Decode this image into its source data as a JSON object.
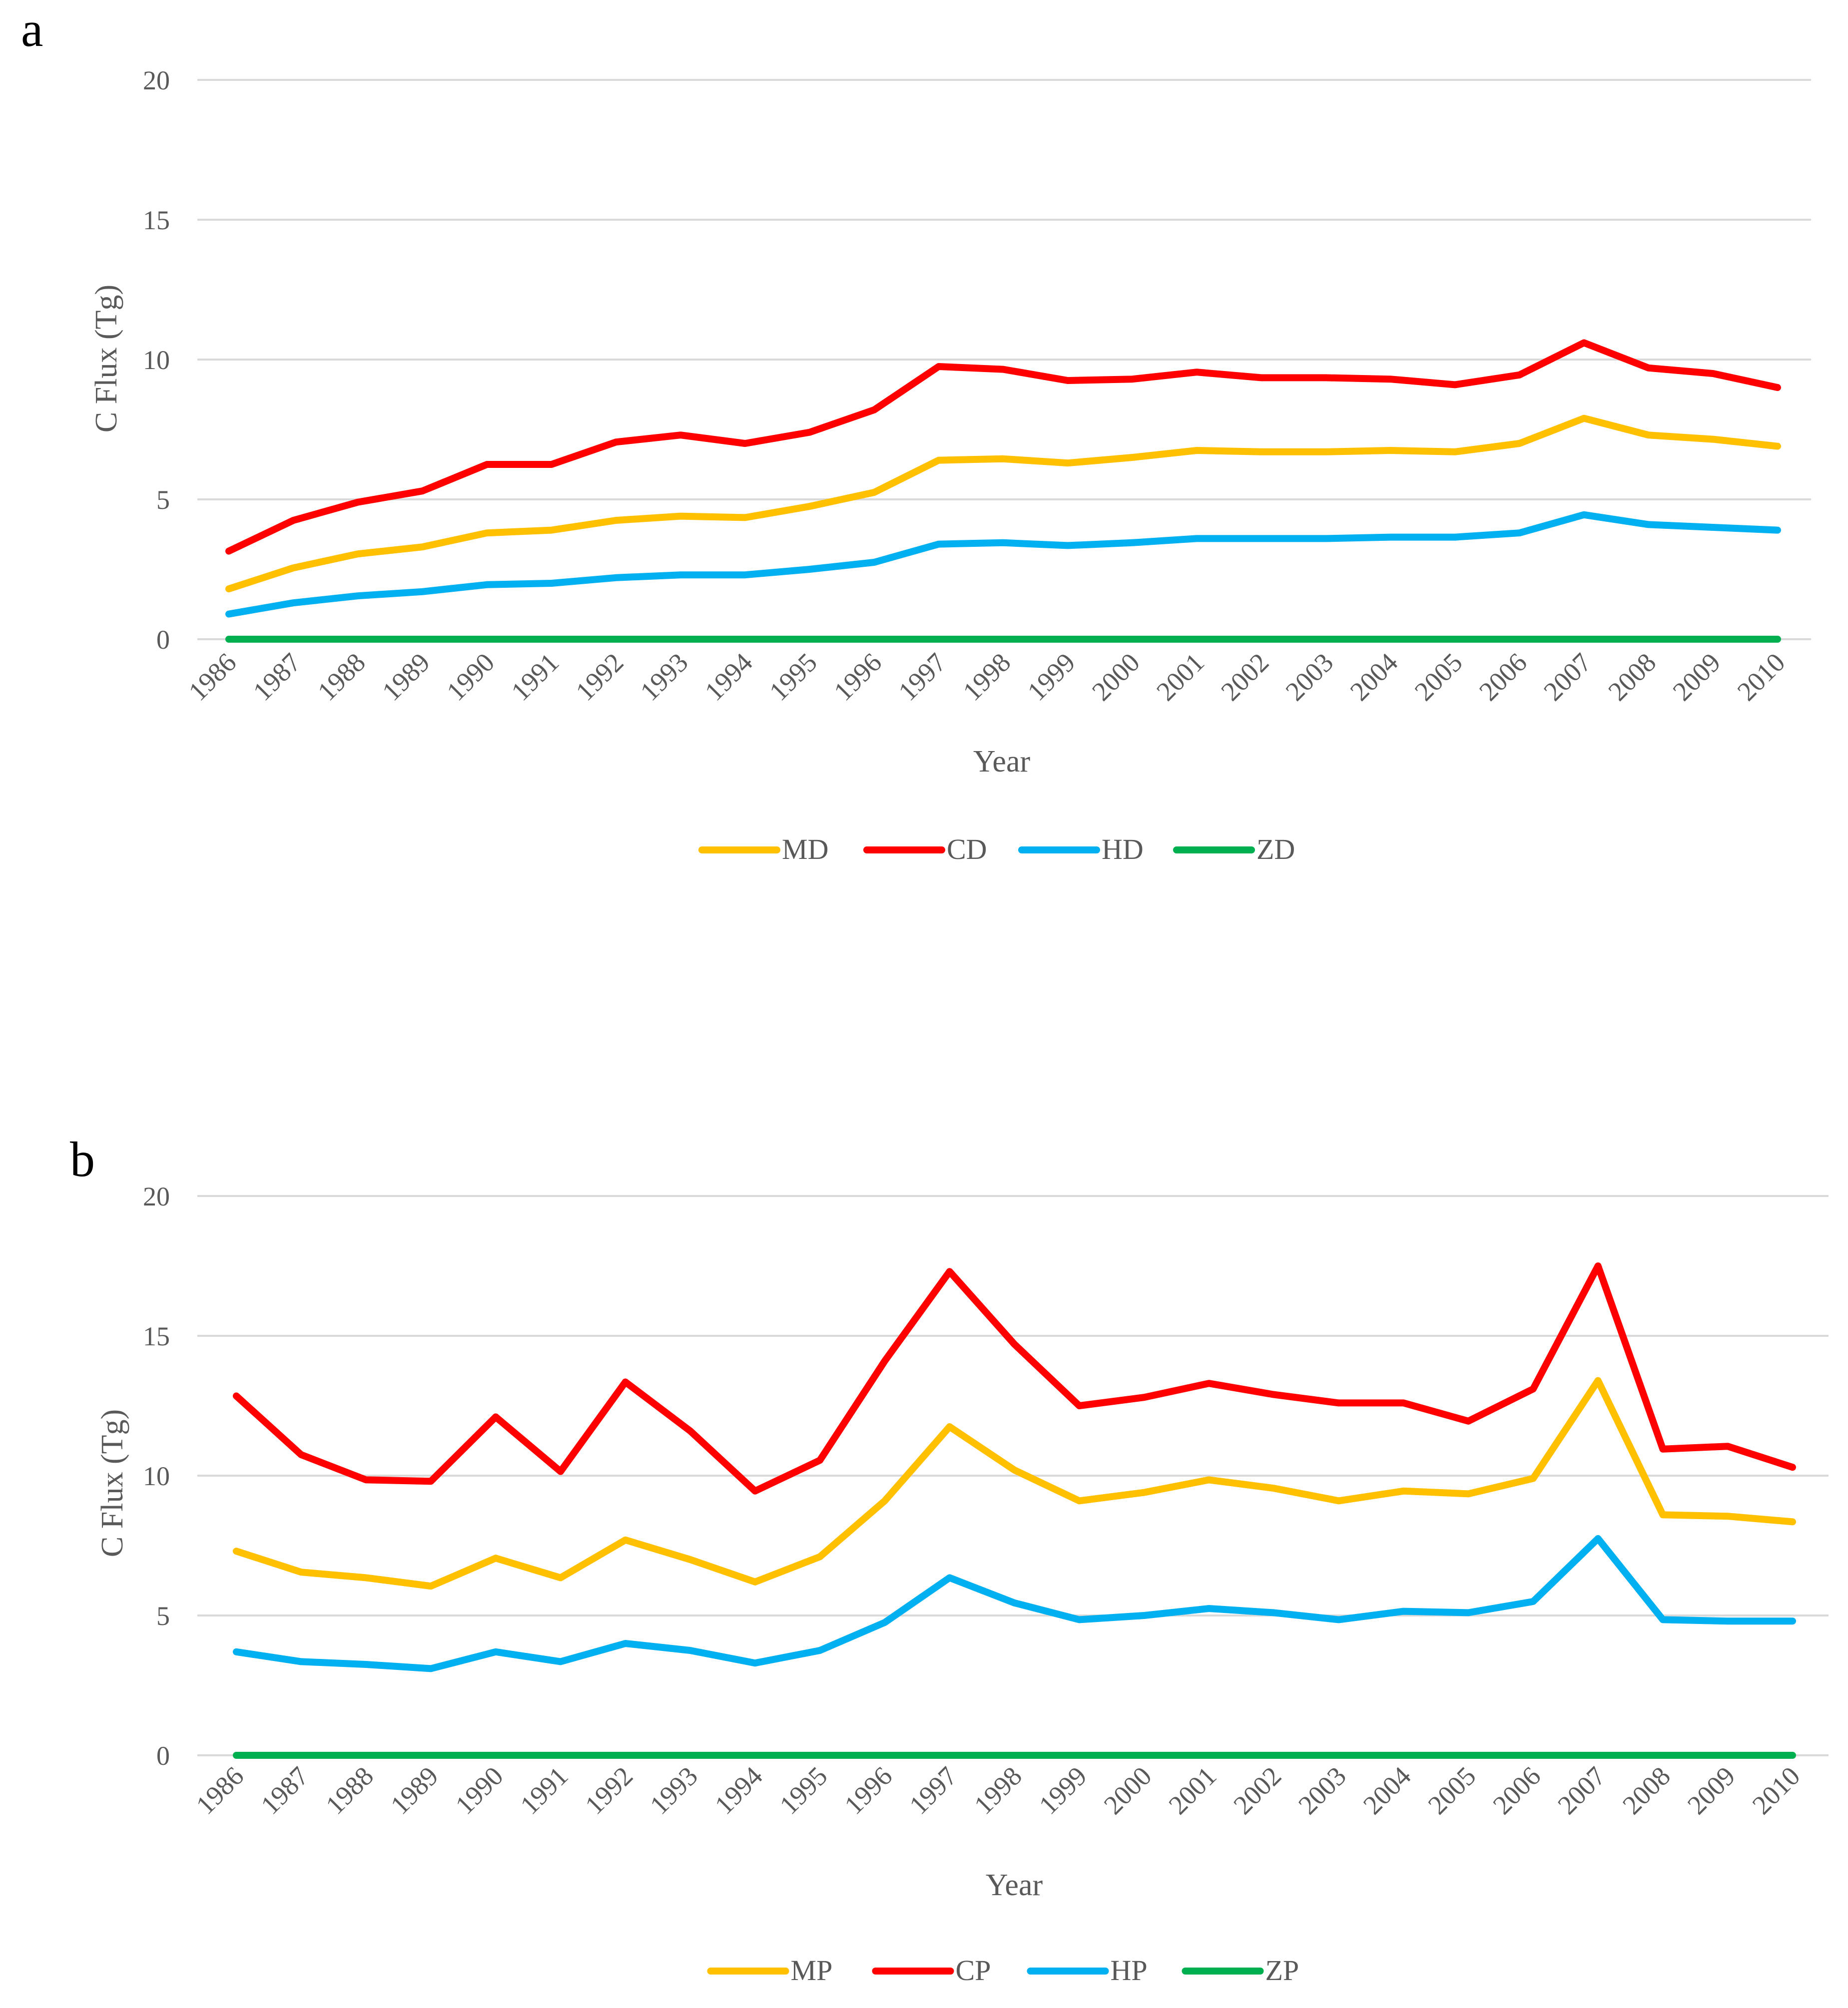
{
  "chart_data": [
    {
      "panel_label": "a",
      "type": "line",
      "title": "",
      "xlabel": "Year",
      "ylabel": "C Flux (Tg)",
      "ylim": [
        0,
        20
      ],
      "yticks": [
        "0",
        "5",
        "10",
        "15",
        "20"
      ],
      "grid": true,
      "legend": "bottom-center",
      "categories": [
        "1986",
        "1987",
        "1988",
        "1989",
        "1990",
        "1991",
        "1992",
        "1993",
        "1994",
        "1995",
        "1996",
        "1997",
        "1998",
        "1999",
        "2000",
        "2001",
        "2002",
        "2003",
        "2004",
        "2005",
        "2006",
        "2007",
        "2008",
        "2009",
        "2010"
      ],
      "series": [
        {
          "name": "MD",
          "color": "#FFC000",
          "values": [
            1.8,
            2.55,
            3.05,
            3.3,
            3.8,
            3.9,
            4.25,
            4.4,
            4.35,
            4.75,
            5.25,
            6.4,
            6.45,
            6.3,
            6.5,
            6.75,
            6.7,
            6.7,
            6.75,
            6.7,
            7.0,
            7.9,
            7.3,
            7.15,
            6.9
          ]
        },
        {
          "name": "CD",
          "color": "#FF0000",
          "values": [
            3.15,
            4.25,
            4.9,
            5.3,
            6.25,
            6.25,
            7.05,
            7.3,
            7.0,
            7.4,
            8.2,
            9.75,
            9.65,
            9.25,
            9.3,
            9.55,
            9.35,
            9.35,
            9.3,
            9.1,
            9.45,
            10.6,
            9.7,
            9.5,
            9.0
          ]
        },
        {
          "name": "HD",
          "color": "#00B0F0",
          "values": [
            0.9,
            1.3,
            1.55,
            1.7,
            1.95,
            2.0,
            2.2,
            2.3,
            2.3,
            2.5,
            2.75,
            3.4,
            3.45,
            3.35,
            3.45,
            3.6,
            3.6,
            3.6,
            3.65,
            3.65,
            3.8,
            4.45,
            4.1,
            4.0,
            3.9
          ]
        },
        {
          "name": "ZD",
          "color": "#00B050",
          "values": [
            0,
            0,
            0,
            0,
            0,
            0,
            0,
            0,
            0,
            0,
            0,
            0,
            0,
            0,
            0,
            0,
            0,
            0,
            0,
            0,
            0,
            0,
            0,
            0,
            0
          ]
        }
      ]
    },
    {
      "panel_label": "b",
      "type": "line",
      "title": "",
      "xlabel": "Year",
      "ylabel": "C Flux (Tg)",
      "ylim": [
        0,
        20
      ],
      "yticks": [
        "0",
        "5",
        "10",
        "15",
        "20"
      ],
      "grid": true,
      "legend": "bottom-center",
      "categories": [
        "1986",
        "1987",
        "1988",
        "1989",
        "1990",
        "1991",
        "1992",
        "1993",
        "1994",
        "1995",
        "1996",
        "1997",
        "1998",
        "1999",
        "2000",
        "2001",
        "2002",
        "2003",
        "2004",
        "2005",
        "2006",
        "2007",
        "2008",
        "2009",
        "2010"
      ],
      "series": [
        {
          "name": "MP",
          "color": "#FFC000",
          "values": [
            7.3,
            6.55,
            6.35,
            6.05,
            7.05,
            6.35,
            7.7,
            7.0,
            6.2,
            7.1,
            9.1,
            11.75,
            10.2,
            9.1,
            9.4,
            9.85,
            9.55,
            9.1,
            9.45,
            9.35,
            9.9,
            13.4,
            8.6,
            8.55,
            8.35
          ]
        },
        {
          "name": "CP",
          "color": "#FF0000",
          "values": [
            12.85,
            10.75,
            9.85,
            9.8,
            12.1,
            10.15,
            13.35,
            11.6,
            9.45,
            10.55,
            14.1,
            17.3,
            14.7,
            12.5,
            12.8,
            13.3,
            12.9,
            12.6,
            12.6,
            11.95,
            13.1,
            17.5,
            10.95,
            11.05,
            10.3
          ]
        },
        {
          "name": "HP",
          "color": "#00B0F0",
          "values": [
            3.7,
            3.35,
            3.25,
            3.1,
            3.7,
            3.35,
            4.0,
            3.75,
            3.3,
            3.75,
            4.75,
            6.35,
            5.45,
            4.85,
            5.0,
            5.25,
            5.1,
            4.85,
            5.15,
            5.1,
            5.5,
            7.75,
            4.85,
            4.8,
            4.8
          ]
        },
        {
          "name": "ZP",
          "color": "#00B050",
          "values": [
            0,
            0,
            0,
            0,
            0,
            0,
            0,
            0,
            0,
            0,
            0,
            0,
            0,
            0,
            0,
            0,
            0,
            0,
            0,
            0,
            0,
            0,
            0,
            0,
            0
          ]
        }
      ]
    }
  ]
}
